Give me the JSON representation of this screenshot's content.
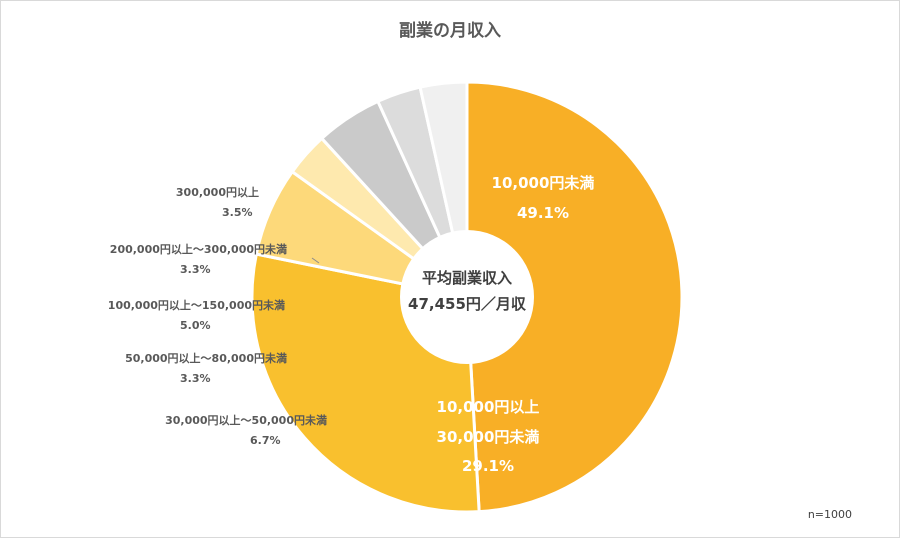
{
  "title": "副業の月収入",
  "note": "n=1000",
  "center": {
    "line1": "平均副業収入",
    "line2": "47,455円／月収"
  },
  "chart_data": {
    "type": "pie",
    "title": "副業の月収入",
    "donut": true,
    "slices": [
      {
        "label": "10,000円未満",
        "value": 49.1,
        "display": "49.1%",
        "color": "#F8AF26"
      },
      {
        "label": "10,000円以上 30,000円未満",
        "value": 29.1,
        "display": "29.1%",
        "color": "#F9C02E"
      },
      {
        "label": "30,000円以上～50,000円未満",
        "value": 6.7,
        "display": "6.7%",
        "color": "#FDD97A"
      },
      {
        "label": "50,000円以上～80,000円未満",
        "value": 3.3,
        "display": "3.3%",
        "color": "#FEE9AE"
      },
      {
        "label": "100,000円以上～150,000円未満",
        "value": 5.0,
        "display": "5.0%",
        "color": "#CACACA"
      },
      {
        "label": "200,000円以上～300,000円未満",
        "value": 3.3,
        "display": "3.3%",
        "color": "#DCDCDC"
      },
      {
        "label": "300,000円以上",
        "value": 3.5,
        "display": "3.5%",
        "color": "#F0F0F0"
      }
    ]
  },
  "labels": {
    "s0": {
      "line1": "10,000円未満",
      "line2": "49.1%"
    },
    "s1": {
      "line1": "10,000円以上",
      "line2": "30,000円未満",
      "line3": "29.1%"
    },
    "s2": {
      "line1": "30,000円以上～50,000円未満",
      "line2": "6.7%"
    },
    "s3": {
      "line1": "50,000円以上～80,000円未満",
      "line2": "3.3%"
    },
    "s4": {
      "line1": "100,000円以上～150,000円未満",
      "line2": "5.0%"
    },
    "s5": {
      "line1": "200,000円以上～300,000円未満",
      "line2": "3.3%"
    },
    "s6": {
      "line1": "300,000円以上",
      "line2": "3.5%"
    }
  }
}
